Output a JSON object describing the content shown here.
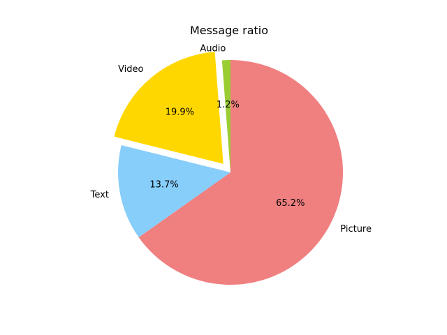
{
  "chart_data": {
    "type": "pie",
    "title": "Message ratio",
    "start_angle_deg": 90,
    "direction": "clockwise",
    "slices": [
      {
        "label": "Picture",
        "value": 65.2,
        "pct_label": "65.2%",
        "color": "#f08080",
        "explode": false
      },
      {
        "label": "Text",
        "value": 13.7,
        "pct_label": "13.7%",
        "color": "#87cefa",
        "explode": false
      },
      {
        "label": "Video",
        "value": 19.9,
        "pct_label": "19.9%",
        "color": "#ffd700",
        "explode": true
      },
      {
        "label": "Audio",
        "value": 1.2,
        "pct_label": "1.2%",
        "color": "#9acd32",
        "explode": false
      }
    ]
  }
}
